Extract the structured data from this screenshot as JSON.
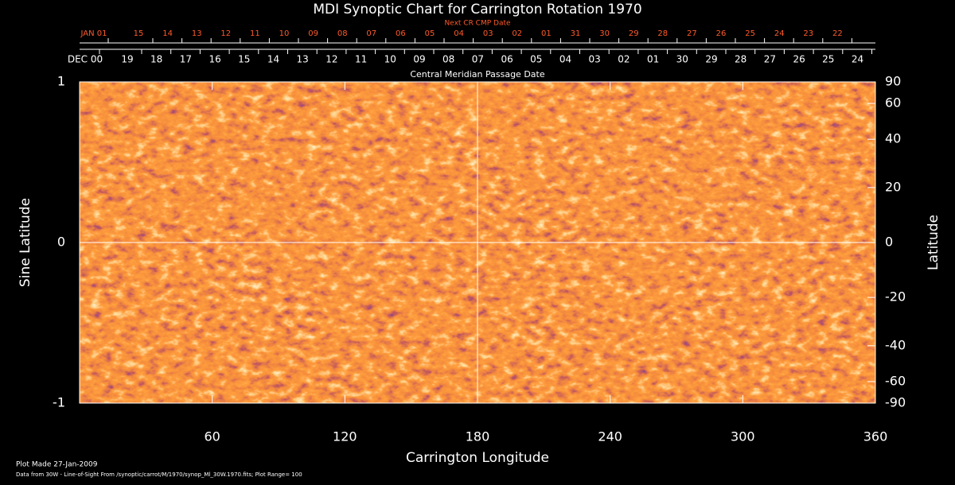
{
  "chart_data": {
    "type": "map",
    "title": "MDI Synoptic Chart for Carrington Rotation 1970",
    "top_axis_title": "Next CR CMP Date",
    "top_axis_labels": [
      "JAN 01",
      "15",
      "14",
      "13",
      "12",
      "11",
      "10",
      "09",
      "08",
      "07",
      "06",
      "05",
      "04",
      "03",
      "02",
      "01",
      "31",
      "30",
      "29",
      "28",
      "27",
      "26",
      "25",
      "24",
      "23",
      "22"
    ],
    "date_axis_labels": [
      "DEC 00",
      "19",
      "18",
      "17",
      "16",
      "15",
      "14",
      "13",
      "12",
      "11",
      "10",
      "09",
      "08",
      "07",
      "06",
      "05",
      "04",
      "03",
      "02",
      "01",
      "30",
      "29",
      "28",
      "27",
      "26",
      "25",
      "24"
    ],
    "date_axis_title": "Central Meridian Passage Date",
    "xlabel": "Carrington Longitude",
    "ylabel": "Sine Latitude",
    "y2label": "Latitude",
    "xlim": [
      0,
      360
    ],
    "xticks": [
      60,
      120,
      180,
      240,
      300,
      360
    ],
    "ylim": [
      -1,
      1
    ],
    "yticks": [
      -1,
      0,
      1
    ],
    "y2lim": [
      -90,
      90
    ],
    "y2ticks": [
      90,
      60,
      40,
      20,
      0,
      -20,
      -40,
      -60,
      -90
    ],
    "y2scale": "sine",
    "footnotes": [
      "Plot Made 27-Jan-2009",
      "Data from 30W - Line-of-Sight From /synoptic/carrot/M/1970/synop_Ml_30W.1970.fits; Plot Range=  100"
    ]
  }
}
